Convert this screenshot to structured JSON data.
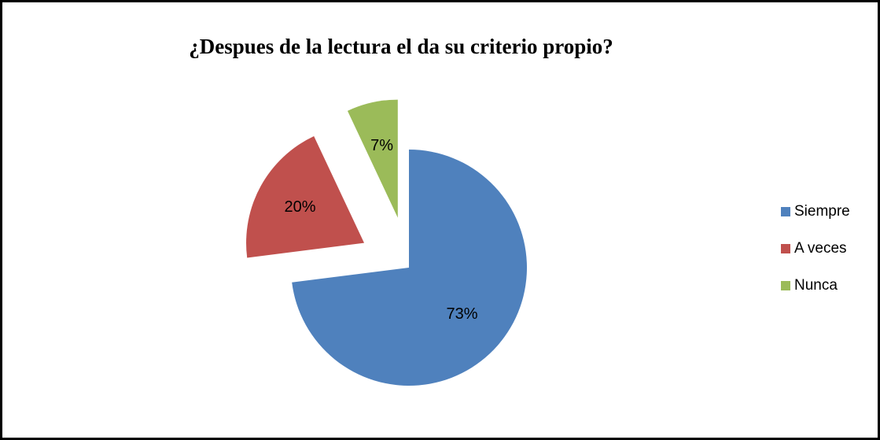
{
  "chart_data": {
    "type": "pie",
    "title": "¿Despues de la lectura el da su criterio propio?",
    "categories": [
      "Siempre",
      "A veces",
      "Nunca"
    ],
    "values": [
      73,
      20,
      7
    ],
    "value_labels": [
      "73%",
      "20%",
      "7%"
    ],
    "colors": [
      "#4f81bd",
      "#c0504d",
      "#9bbb59"
    ],
    "legend": "right"
  }
}
